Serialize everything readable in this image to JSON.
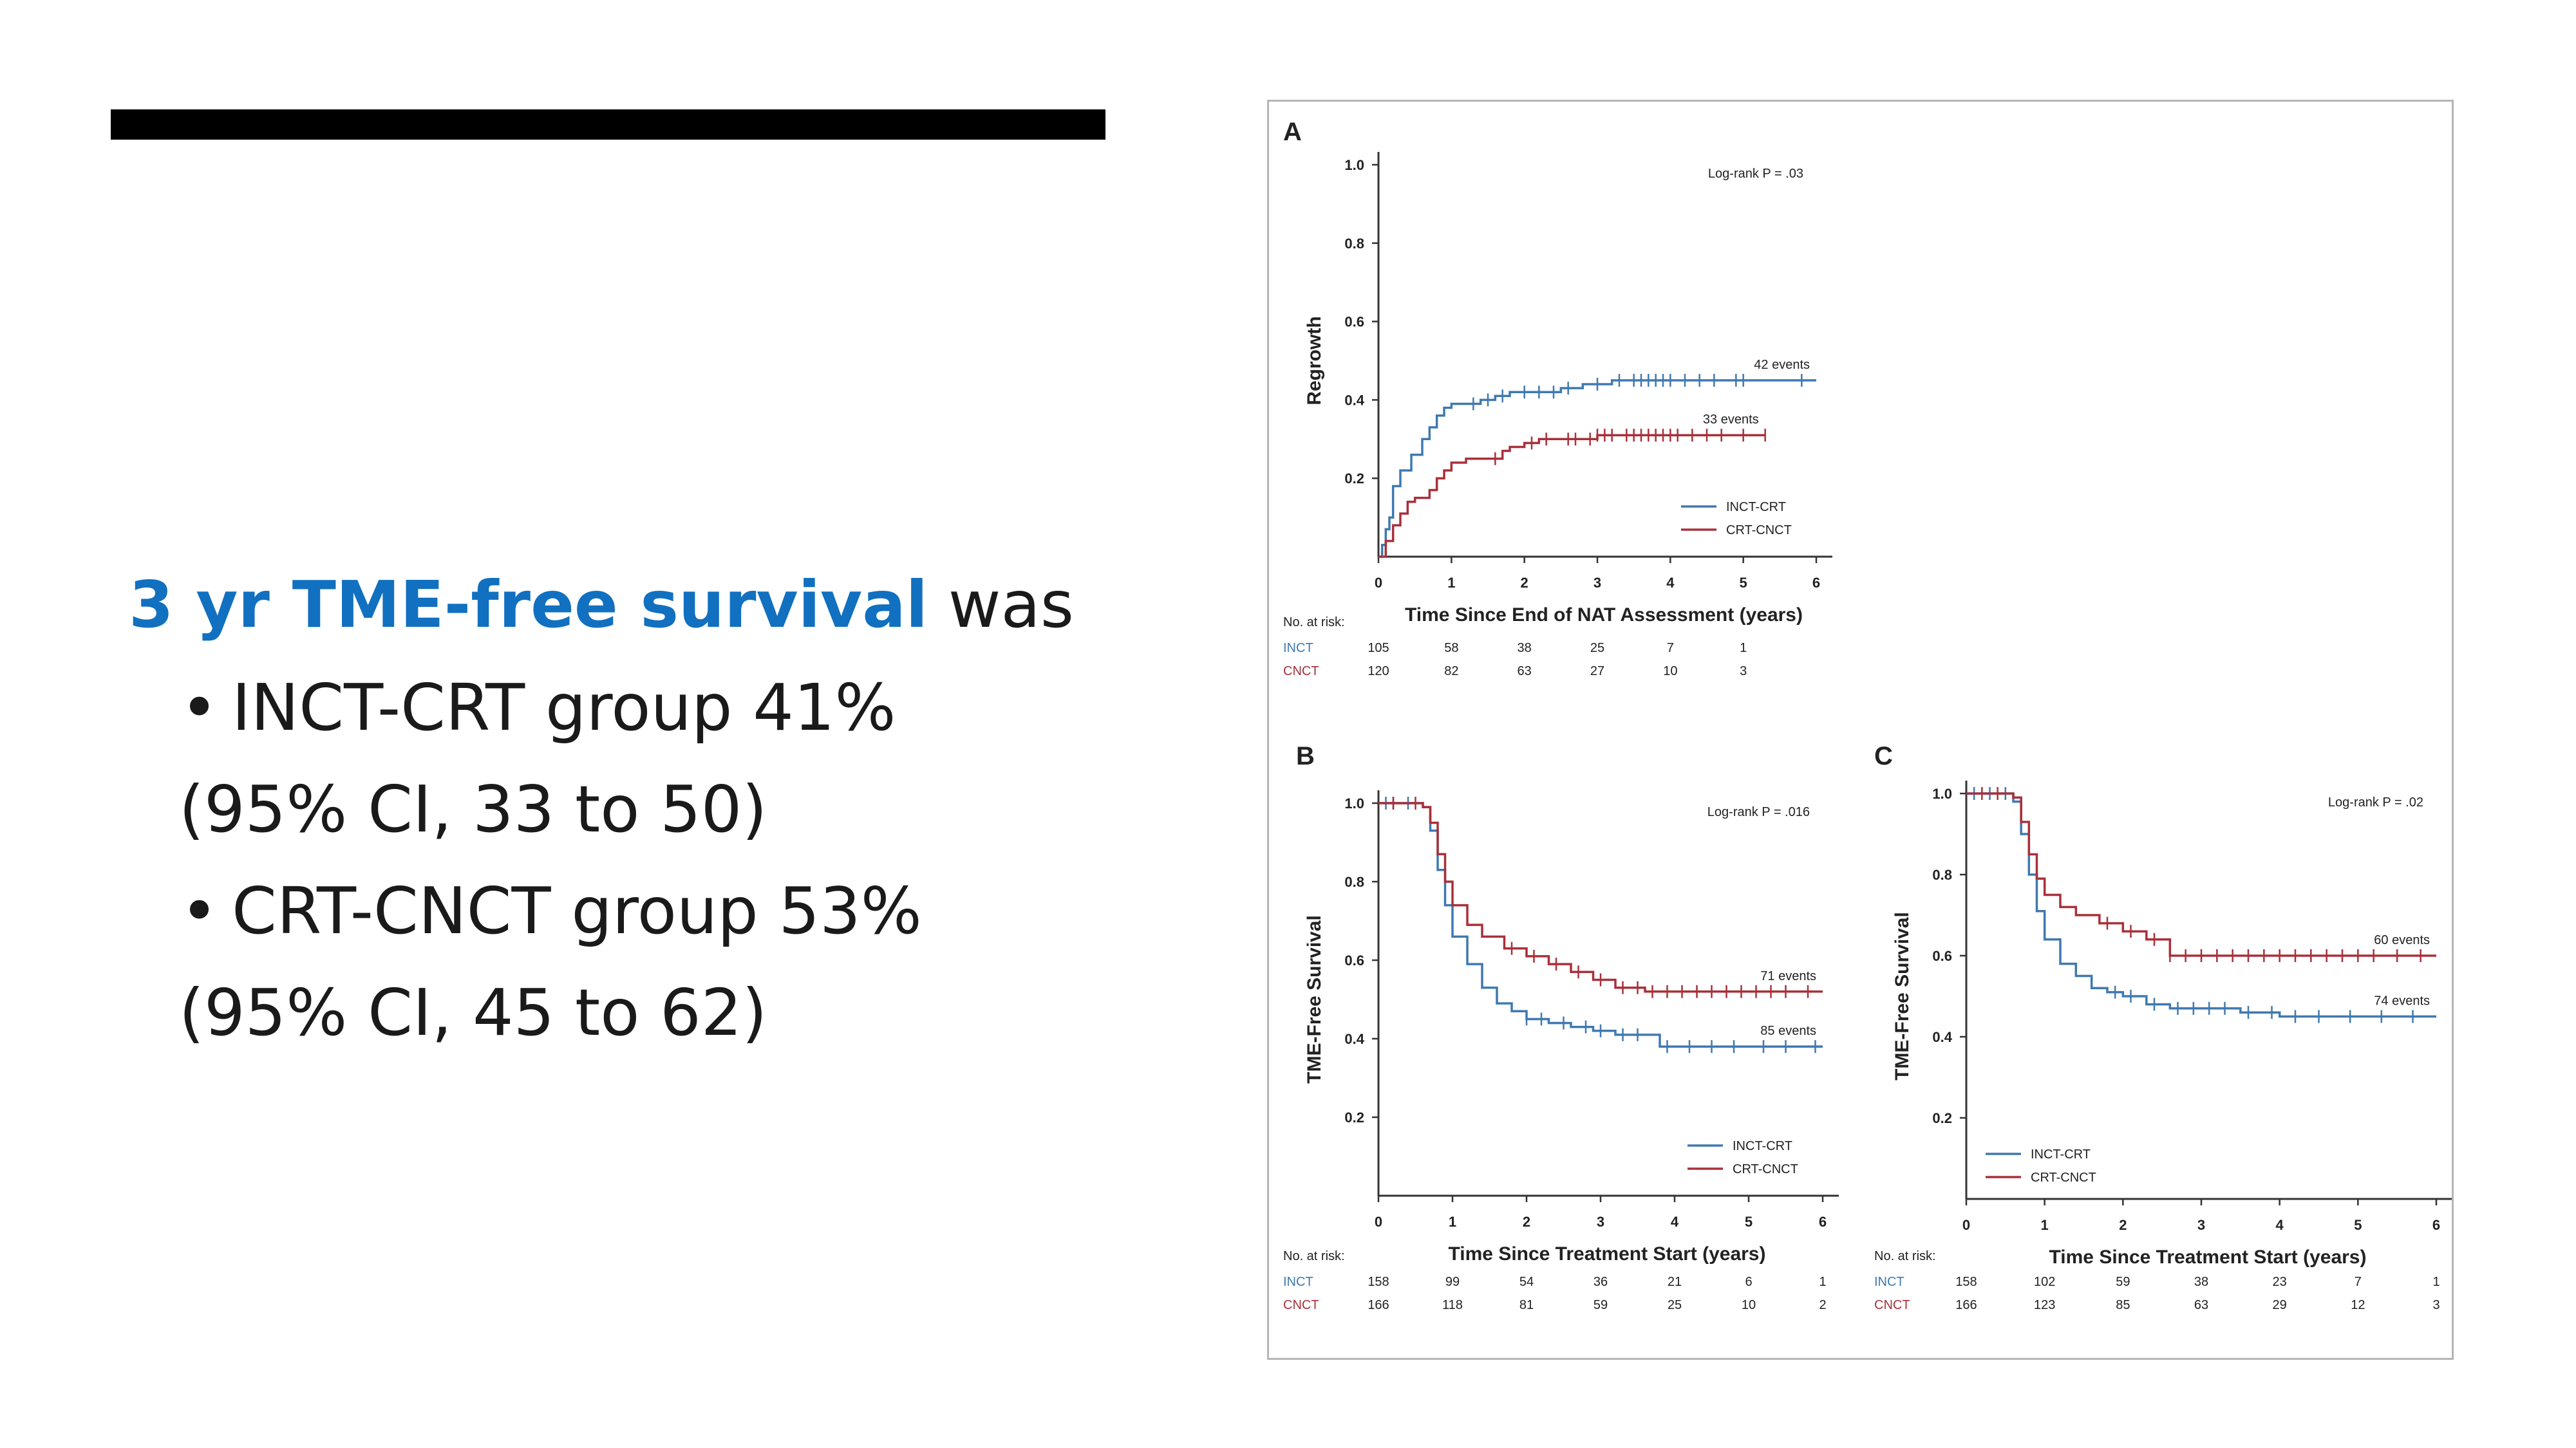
{
  "slide": {
    "heading_accent": "3 yr TME-free survival",
    "heading_rest": " was",
    "bullets": [
      {
        "main": "INCT-CRT group 41%",
        "sub": "(95% CI, 33 to 50)"
      },
      {
        "main": "CRT-CNCT group 53%",
        "sub": "(95% CI, 45 to 62)"
      }
    ],
    "bullet_symbol": "•",
    "accent_color": "#1170c0"
  },
  "colors": {
    "inct": "#3f79b0",
    "cnct": "#a9303a"
  },
  "chart_data": [
    {
      "type": "line",
      "panel_label": "A",
      "xlabel": "Time Since End of NAT Assessment (years)",
      "ylabel": "Regrowth",
      "xlim": [
        0,
        6
      ],
      "ylim": [
        0,
        1.0
      ],
      "x_ticks": [
        "0",
        "1",
        "2",
        "3",
        "4",
        "5",
        "6"
      ],
      "y_ticks": [
        "0.2",
        "0.4",
        "0.6",
        "0.8",
        "1.0"
      ],
      "y_tick_values": [
        0.2,
        0.4,
        0.6,
        0.8,
        1.0
      ],
      "annotation": "Log-rank P = .03",
      "legend": [
        "INCT-CRT",
        "CRT-CNCT"
      ],
      "legend_position": "bottom-right",
      "series": [
        {
          "name": "INCT-CRT",
          "event_label": "42 events",
          "x": [
            0,
            0.05,
            0.1,
            0.15,
            0.2,
            0.3,
            0.45,
            0.6,
            0.7,
            0.8,
            0.9,
            1.0,
            1.2,
            1.4,
            1.6,
            1.8,
            2.1,
            2.5,
            2.8,
            3.2,
            4.0,
            5.0,
            6.0
          ],
          "y": [
            0,
            0.03,
            0.07,
            0.1,
            0.18,
            0.22,
            0.26,
            0.3,
            0.33,
            0.36,
            0.38,
            0.39,
            0.39,
            0.4,
            0.41,
            0.42,
            0.42,
            0.43,
            0.44,
            0.45,
            0.45,
            0.45,
            0.45
          ],
          "censor_x": [
            1.3,
            1.5,
            1.7,
            2.0,
            2.2,
            2.4,
            2.6,
            3.0,
            3.3,
            3.5,
            3.6,
            3.7,
            3.8,
            3.9,
            4.0,
            4.2,
            4.4,
            4.6,
            4.9,
            5.0,
            5.8
          ]
        },
        {
          "name": "CRT-CNCT",
          "event_label": "33 events",
          "x": [
            0,
            0.1,
            0.2,
            0.3,
            0.4,
            0.5,
            0.7,
            0.8,
            0.9,
            1.0,
            1.2,
            1.5,
            1.7,
            1.8,
            2.0,
            2.2,
            2.5,
            2.8,
            3.0,
            4.0,
            5.3
          ],
          "y": [
            0,
            0.04,
            0.08,
            0.11,
            0.14,
            0.15,
            0.17,
            0.2,
            0.22,
            0.24,
            0.25,
            0.25,
            0.27,
            0.28,
            0.29,
            0.3,
            0.3,
            0.3,
            0.31,
            0.31,
            0.31
          ],
          "censor_x": [
            1.6,
            2.1,
            2.3,
            2.6,
            2.7,
            2.9,
            3.0,
            3.1,
            3.2,
            3.4,
            3.5,
            3.6,
            3.7,
            3.8,
            3.9,
            4.0,
            4.1,
            4.3,
            4.5,
            4.7,
            5.0,
            5.3
          ]
        }
      ],
      "risk_table": {
        "header": "No. at risk:",
        "rows": [
          {
            "label": "INCT",
            "values": [
              "105",
              "58",
              "38",
              "25",
              "7",
              "1"
            ]
          },
          {
            "label": "CNCT",
            "values": [
              "120",
              "82",
              "63",
              "27",
              "10",
              "3"
            ]
          }
        ]
      }
    },
    {
      "type": "line",
      "panel_label": "B",
      "xlabel": "Time Since Treatment Start (years)",
      "ylabel": "TME-Free Survival",
      "xlim": [
        0,
        6
      ],
      "ylim": [
        0,
        1.0
      ],
      "x_ticks": [
        "0",
        "1",
        "2",
        "3",
        "4",
        "5",
        "6"
      ],
      "y_ticks": [
        "0.2",
        "0.4",
        "0.6",
        "0.8",
        "1.0"
      ],
      "y_tick_values": [
        0.2,
        0.4,
        0.6,
        0.8,
        1.0
      ],
      "annotation": "Log-rank P = .016",
      "legend": [
        "INCT-CRT",
        "CRT-CNCT"
      ],
      "legend_position": "bottom-right",
      "series": [
        {
          "name": "INCT-CRT",
          "event_label": "85 events",
          "x": [
            0,
            0.3,
            0.6,
            0.7,
            0.8,
            0.9,
            1.0,
            1.2,
            1.4,
            1.6,
            1.8,
            2.0,
            2.3,
            2.6,
            2.9,
            3.2,
            3.6,
            3.8,
            6.0
          ],
          "y": [
            1.0,
            1.0,
            0.99,
            0.93,
            0.83,
            0.74,
            0.66,
            0.59,
            0.53,
            0.49,
            0.47,
            0.45,
            0.44,
            0.43,
            0.42,
            0.41,
            0.41,
            0.38,
            0.38
          ],
          "censor_x": [
            0.1,
            0.2,
            0.4,
            2.0,
            2.2,
            2.5,
            2.8,
            3.0,
            3.3,
            3.5,
            3.9,
            4.2,
            4.5,
            4.8,
            5.2,
            5.5,
            5.9
          ]
        },
        {
          "name": "CRT-CNCT",
          "event_label": "71 events",
          "x": [
            0,
            0.3,
            0.6,
            0.7,
            0.8,
            0.9,
            1.0,
            1.2,
            1.4,
            1.7,
            2.0,
            2.3,
            2.6,
            2.9,
            3.2,
            3.6,
            4.0,
            6.0
          ],
          "y": [
            1.0,
            1.0,
            0.99,
            0.95,
            0.87,
            0.8,
            0.74,
            0.69,
            0.66,
            0.63,
            0.61,
            0.59,
            0.57,
            0.55,
            0.53,
            0.52,
            0.52,
            0.52
          ],
          "censor_x": [
            0.2,
            0.5,
            1.8,
            2.1,
            2.4,
            2.7,
            3.0,
            3.3,
            3.5,
            3.7,
            3.9,
            4.1,
            4.3,
            4.5,
            4.7,
            4.9,
            5.1,
            5.3,
            5.5,
            5.8
          ]
        }
      ],
      "risk_table": {
        "header": "No. at risk:",
        "rows": [
          {
            "label": "INCT",
            "values": [
              "158",
              "99",
              "54",
              "36",
              "21",
              "6",
              "1"
            ]
          },
          {
            "label": "CNCT",
            "values": [
              "166",
              "118",
              "81",
              "59",
              "25",
              "10",
              "2"
            ]
          }
        ]
      }
    },
    {
      "type": "line",
      "panel_label": "C",
      "xlabel": "Time Since Treatment Start (years)",
      "ylabel": "TME-Free Survival",
      "xlim": [
        0,
        6
      ],
      "ylim": [
        0,
        1.0
      ],
      "x_ticks": [
        "0",
        "1",
        "2",
        "3",
        "4",
        "5",
        "6"
      ],
      "y_ticks": [
        "0.2",
        "0.4",
        "0.6",
        "0.8",
        "1.0"
      ],
      "y_tick_values": [
        0.2,
        0.4,
        0.6,
        0.8,
        1.0
      ],
      "annotation": "Log-rank P = .02",
      "legend": [
        "INCT-CRT",
        "CRT-CNCT"
      ],
      "legend_position": "bottom-left",
      "series": [
        {
          "name": "INCT-CRT",
          "event_label": "74 events",
          "x": [
            0,
            0.3,
            0.6,
            0.7,
            0.8,
            0.9,
            1.0,
            1.2,
            1.4,
            1.6,
            1.8,
            2.0,
            2.3,
            2.6,
            3.0,
            3.5,
            4.0,
            6.0
          ],
          "y": [
            1.0,
            1.0,
            0.98,
            0.9,
            0.8,
            0.71,
            0.64,
            0.58,
            0.55,
            0.52,
            0.51,
            0.5,
            0.48,
            0.47,
            0.47,
            0.46,
            0.45,
            0.45
          ],
          "censor_x": [
            0.1,
            0.3,
            0.5,
            1.9,
            2.1,
            2.4,
            2.7,
            2.9,
            3.1,
            3.3,
            3.6,
            3.9,
            4.2,
            4.5,
            4.9,
            5.3,
            5.7
          ]
        },
        {
          "name": "CRT-CNCT",
          "event_label": "60 events",
          "x": [
            0,
            0.3,
            0.6,
            0.7,
            0.8,
            0.9,
            1.0,
            1.2,
            1.4,
            1.7,
            2.0,
            2.3,
            2.6,
            3.0,
            6.0
          ],
          "y": [
            1.0,
            1.0,
            0.99,
            0.93,
            0.85,
            0.79,
            0.75,
            0.72,
            0.7,
            0.68,
            0.66,
            0.64,
            0.6,
            0.6,
            0.6
          ],
          "censor_x": [
            0.2,
            0.4,
            1.8,
            2.1,
            2.4,
            2.6,
            2.8,
            3.0,
            3.2,
            3.4,
            3.6,
            3.8,
            4.0,
            4.2,
            4.4,
            4.6,
            4.8,
            5.0,
            5.2,
            5.5,
            5.8
          ]
        }
      ],
      "risk_table": {
        "header": "No. at risk:",
        "rows": [
          {
            "label": "INCT",
            "values": [
              "158",
              "102",
              "59",
              "38",
              "23",
              "7",
              "1"
            ]
          },
          {
            "label": "CNCT",
            "values": [
              "166",
              "123",
              "85",
              "63",
              "29",
              "12",
              "3"
            ]
          }
        ]
      }
    }
  ]
}
